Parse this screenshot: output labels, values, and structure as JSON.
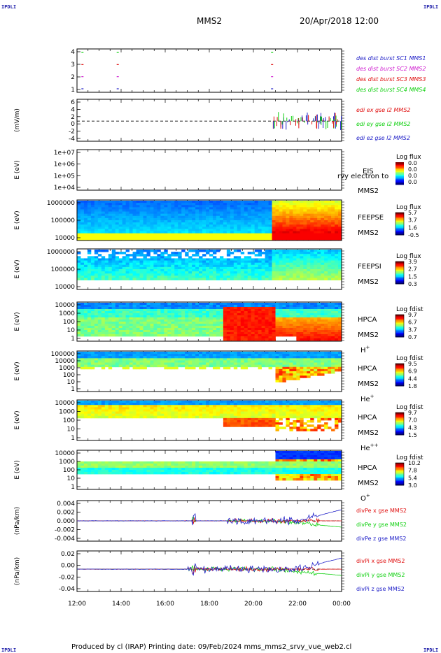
{
  "corners": {
    "tl": "IPDLI",
    "tr": "IPDLI",
    "bl": "IPDLI",
    "br": "IPDLI"
  },
  "header": {
    "spacecraft": "MMS2",
    "datetime": "20/Apr/2018 12:00"
  },
  "footer": {
    "text": "Produced by cl (IRAP)   Printing date: 09/Feb/2024   mms_mms2_srvy_vue_web2.cl"
  },
  "colors": {
    "blue": "#2020c8",
    "magenta": "#d020d0",
    "red": "#e01010",
    "green": "#10d010",
    "black": "#000000"
  },
  "chart_data": [
    {
      "type": "scatter",
      "id": "burst",
      "title": "",
      "ylabel": "",
      "ylim": [
        0.5,
        4.5
      ],
      "yticks": [
        "4",
        "3",
        "2",
        "1"
      ],
      "legend": [
        {
          "label": "des dist burst SC1 MMS1",
          "color": "#2020c8"
        },
        {
          "label": "des dist burst SC2 MMS2",
          "color": "#d020d0"
        },
        {
          "label": "des dist burst SC3 MMS3",
          "color": "#e01010"
        },
        {
          "label": "des dist burst SC4 MMS4",
          "color": "#10d010"
        }
      ],
      "series": [
        {
          "name": "des dist burst SC4 MMS4",
          "level": 4,
          "x": [
            12.2,
            13.8,
            20.8
          ]
        },
        {
          "name": "des dist burst SC3 MMS3",
          "level": 3,
          "x": [
            12.2,
            13.8,
            20.8
          ]
        },
        {
          "name": "des dist burst SC2 MMS2",
          "level": 2,
          "x": [
            12.2,
            13.8,
            20.8
          ]
        },
        {
          "name": "des dist burst SC1 MMS1",
          "level": 1,
          "x": [
            12.2,
            13.8,
            20.8
          ]
        }
      ]
    },
    {
      "type": "line",
      "id": "edi",
      "ylabel": "(mV/m)",
      "ylim": [
        -6,
        6
      ],
      "yticks": [
        "6",
        "4",
        "2",
        "0",
        "-2",
        "-4"
      ],
      "legend": [
        {
          "label": "edi ex gse l2 MMS2",
          "color": "#e01010"
        },
        {
          "label": "edi ey gse l2 MMS2",
          "color": "#10d010"
        },
        {
          "label": "edi ez gse l2 MMS2",
          "color": "#2020c8"
        }
      ],
      "active_range": [
        20.9,
        24.0
      ]
    },
    {
      "type": "heatmap",
      "id": "eis",
      "ylabel": "E (eV)",
      "log": true,
      "yticks": [
        "1e+07",
        "1e+06",
        "1e+05",
        "1e+04"
      ],
      "inst_labels": [
        "EIS",
        "MMS2"
      ],
      "overlay_text": "rvy electron to",
      "colorbar": {
        "title": "Log flux",
        "ticks": [
          "0.0",
          "0.0",
          "0.0",
          "0.0"
        ]
      },
      "empty": true
    },
    {
      "type": "heatmap",
      "id": "feepse",
      "ylabel": "E (eV)",
      "log": true,
      "yticks": [
        "1000000",
        "100000",
        "10000"
      ],
      "inst_labels": [
        "FEEPSE",
        "MMS2"
      ],
      "colorbar": {
        "title": "Log flux",
        "ticks": [
          "5.7",
          "3.7",
          "1.6",
          "-0.5"
        ]
      }
    },
    {
      "type": "heatmap",
      "id": "feepsi",
      "ylabel": "E (eV)",
      "log": true,
      "yticks": [
        "1000000",
        "100000",
        "10000"
      ],
      "inst_labels": [
        "FEEPSI",
        "MMS2"
      ],
      "colorbar": {
        "title": "Log flux",
        "ticks": [
          "3.9",
          "2.7",
          "1.5",
          "0.3"
        ]
      }
    },
    {
      "type": "heatmap",
      "id": "hpca_h",
      "ylabel": "E (eV)",
      "log": true,
      "yticks": [
        "10000",
        "1000",
        "100",
        "10",
        "1"
      ],
      "inst_labels": [
        "HPCA",
        "MMS2",
        "H+"
      ],
      "colorbar": {
        "title": "Log fdist",
        "ticks": [
          "9.7",
          "6.7",
          "3.7",
          "0.7"
        ]
      }
    },
    {
      "type": "heatmap",
      "id": "hpca_he",
      "ylabel": "E (eV)",
      "log": true,
      "yticks": [
        "100000",
        "10000",
        "1000",
        "100",
        "10",
        "1"
      ],
      "inst_labels": [
        "HPCA",
        "MMS2",
        "He+"
      ],
      "colorbar": {
        "title": "Log fdist",
        "ticks": [
          "9.5",
          "6.9",
          "4.4",
          "1.8"
        ]
      }
    },
    {
      "type": "heatmap",
      "id": "hpca_hepp",
      "ylabel": "E (eV)",
      "log": true,
      "yticks": [
        "10000",
        "1000",
        "100",
        "10",
        "1"
      ],
      "inst_labels": [
        "HPCA",
        "MMS2",
        "He++"
      ],
      "colorbar": {
        "title": "Log fdist",
        "ticks": [
          "9.7",
          "7.0",
          "4.3",
          "1.5"
        ]
      }
    },
    {
      "type": "heatmap",
      "id": "hpca_o",
      "ylabel": "E (eV)",
      "log": true,
      "yticks": [
        "10000",
        "1000",
        "100",
        "10",
        "1"
      ],
      "inst_labels": [
        "HPCA",
        "MMS2",
        "O+"
      ],
      "colorbar": {
        "title": "Log fdist",
        "ticks": [
          "10.2",
          "7.8",
          "5.4",
          "3.0"
        ]
      }
    },
    {
      "type": "line",
      "id": "divpe",
      "ylabel": "(nPa/km)",
      "ylim": [
        -0.005,
        0.005
      ],
      "yticks": [
        "0.004",
        "0.002",
        "0.000",
        "-0.002",
        "-0.004"
      ],
      "legend": [
        {
          "label": "divPe x gse MMS2",
          "color": "#e01010"
        },
        {
          "label": "divPe y gse MMS2",
          "color": "#10d010"
        },
        {
          "label": "divPe z gse MMS2",
          "color": "#2020c8"
        }
      ],
      "spike_x": 17.3,
      "active_range": [
        18.8,
        23.0
      ]
    },
    {
      "type": "line",
      "id": "divpi",
      "ylabel": "(nPa/km)",
      "ylim": [
        -0.045,
        0.025
      ],
      "yticks": [
        "0.02",
        "0.00",
        "-0.02",
        "-0.04"
      ],
      "legend": [
        {
          "label": "divPi x gse MMS2",
          "color": "#e01010"
        },
        {
          "label": "divPi y gse MMS2",
          "color": "#10d010"
        },
        {
          "label": "divPi z gse MMS2",
          "color": "#2020c8"
        }
      ],
      "spike_x": 17.3,
      "active_range": [
        17.0,
        23.0
      ]
    }
  ],
  "xaxis": {
    "ticks": [
      "12:00",
      "14:00",
      "16:00",
      "18:00",
      "20:00",
      "22:00",
      "00:00"
    ],
    "range_hours": [
      12,
      24
    ]
  }
}
